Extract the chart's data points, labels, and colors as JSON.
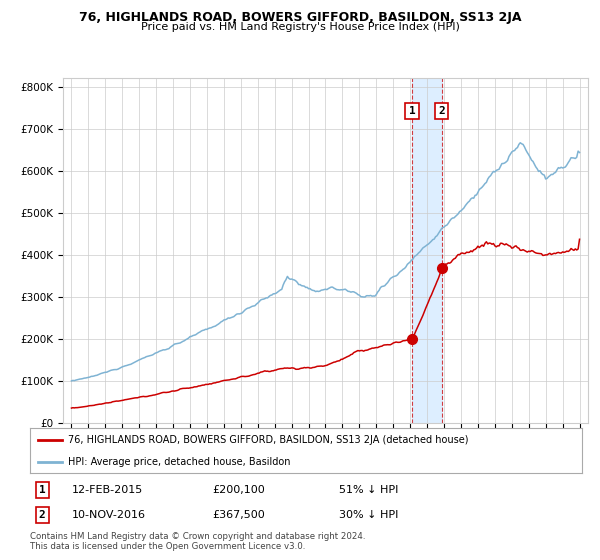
{
  "title": "76, HIGHLANDS ROAD, BOWERS GIFFORD, BASILDON, SS13 2JA",
  "subtitle": "Price paid vs. HM Land Registry's House Price Index (HPI)",
  "legend_red": "76, HIGHLANDS ROAD, BOWERS GIFFORD, BASILDON, SS13 2JA (detached house)",
  "legend_blue": "HPI: Average price, detached house, Basildon",
  "sale1_date": "12-FEB-2015",
  "sale1_price": "£200,100",
  "sale1_pct": "51% ↓ HPI",
  "sale2_date": "10-NOV-2016",
  "sale2_price": "£367,500",
  "sale2_pct": "30% ↓ HPI",
  "footnote": "Contains HM Land Registry data © Crown copyright and database right 2024.\nThis data is licensed under the Open Government Licence v3.0.",
  "sale1_x": 2015.11,
  "sale1_y": 200100,
  "sale2_x": 2016.86,
  "sale2_y": 367500,
  "ylim": [
    0,
    820000
  ],
  "xlim_start": 1994.5,
  "xlim_end": 2025.5,
  "red_color": "#cc0000",
  "blue_color": "#7fb3d3",
  "highlight_color": "#ddeeff",
  "grid_color": "#cccccc",
  "bg_color": "#ffffff",
  "tick_years": [
    1995,
    1996,
    1997,
    1998,
    1999,
    2000,
    2001,
    2002,
    2003,
    2004,
    2005,
    2006,
    2007,
    2008,
    2009,
    2010,
    2011,
    2012,
    2013,
    2014,
    2015,
    2016,
    2017,
    2018,
    2019,
    2020,
    2021,
    2022,
    2023,
    2024,
    2025
  ]
}
